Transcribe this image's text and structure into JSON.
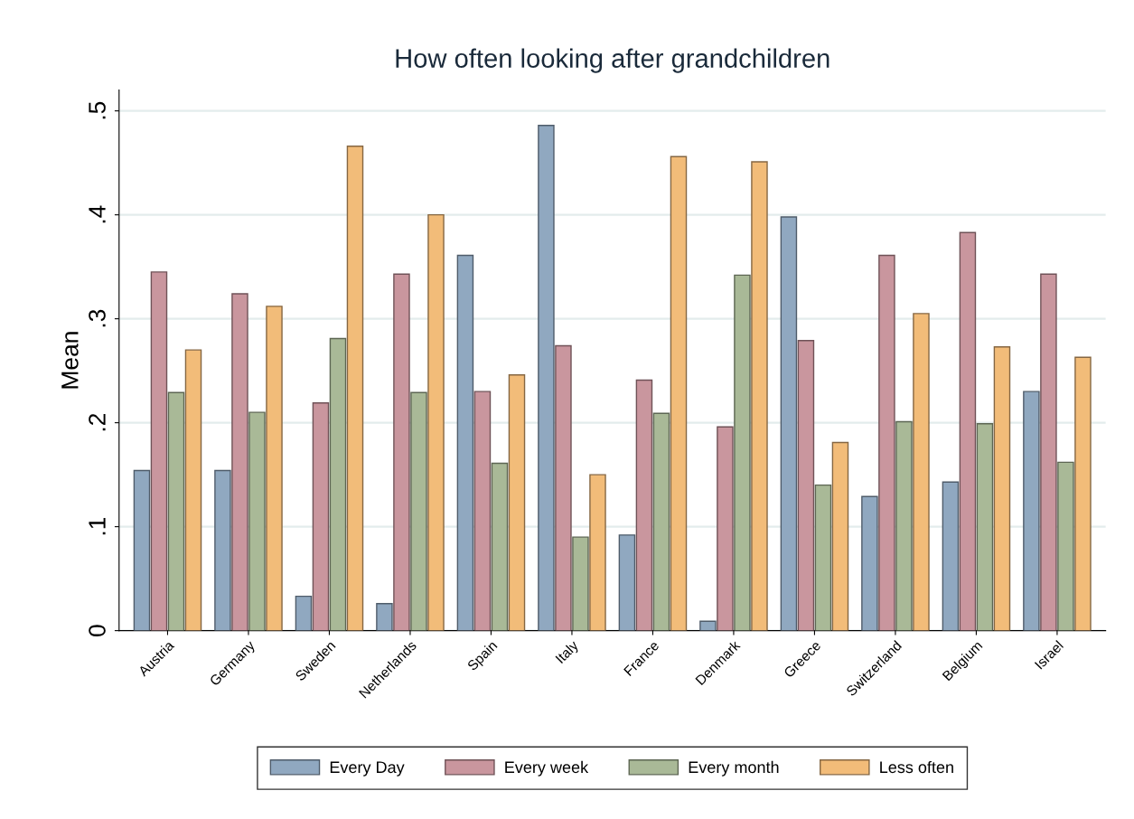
{
  "chart_data": {
    "type": "bar",
    "title": "How often looking after grandchildren",
    "ylabel": "Mean",
    "categories": [
      "Austria",
      "Germany",
      "Sweden",
      "Netherlands",
      "Spain",
      "Italy",
      "France",
      "Denmark",
      "Greece",
      "Switzerland",
      "Belgium",
      "Israel"
    ],
    "series": [
      {
        "name": "Every Day",
        "color": "#90a8c0",
        "values": [
          0.154,
          0.154,
          0.033,
          0.026,
          0.361,
          0.486,
          0.092,
          0.009,
          0.398,
          0.129,
          0.143,
          0.23
        ]
      },
      {
        "name": "Every week",
        "color": "#c9969e",
        "values": [
          0.345,
          0.324,
          0.219,
          0.343,
          0.23,
          0.274,
          0.241,
          0.196,
          0.279,
          0.361,
          0.383,
          0.343
        ]
      },
      {
        "name": "Every month",
        "color": "#a9b997",
        "values": [
          0.229,
          0.21,
          0.281,
          0.229,
          0.161,
          0.09,
          0.209,
          0.342,
          0.14,
          0.201,
          0.199,
          0.162
        ]
      },
      {
        "name": "Less often",
        "color": "#f2bc79",
        "values": [
          0.27,
          0.312,
          0.466,
          0.4,
          0.246,
          0.15,
          0.456,
          0.451,
          0.181,
          0.305,
          0.273,
          0.263
        ]
      }
    ],
    "ylim": [
      0,
      0.52
    ],
    "yticks": [
      {
        "value": 0,
        "label": "0"
      },
      {
        "value": 0.1,
        "label": ".1"
      },
      {
        "value": 0.2,
        "label": ".2"
      },
      {
        "value": 0.3,
        "label": ".3"
      },
      {
        "value": 0.4,
        "label": ".4"
      },
      {
        "value": 0.5,
        "label": ".5"
      }
    ],
    "grid": "y",
    "legend": "bottom"
  }
}
